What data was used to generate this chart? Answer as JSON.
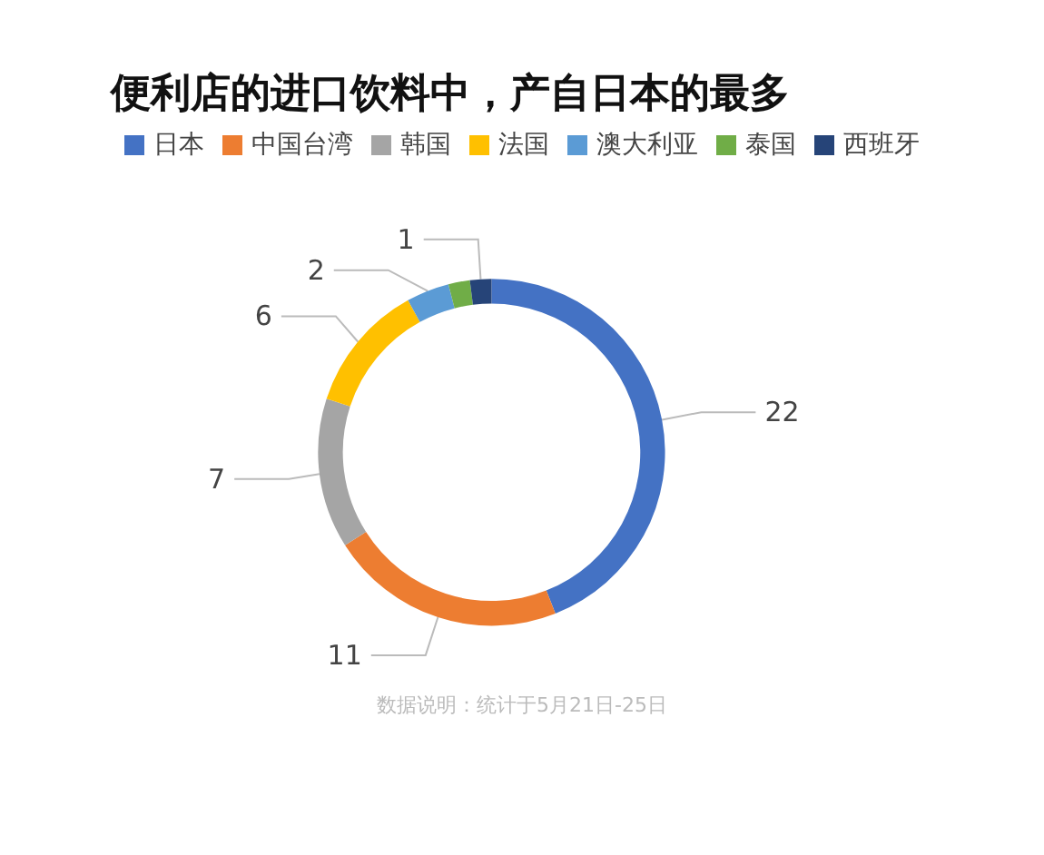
{
  "chart_data": {
    "type": "donut",
    "title": "便利店的进口饮料中，产自日本的最多",
    "categories": [
      "日本",
      "中国台湾",
      "韩国",
      "法国",
      "澳大利亚",
      "泰国",
      "西班牙"
    ],
    "values": [
      22,
      11,
      7,
      6,
      2,
      1,
      1
    ],
    "value_labels": [
      "22",
      "11",
      "7",
      "6",
      "2",
      null,
      "1"
    ],
    "colors": [
      "#4472c4",
      "#ed7d31",
      "#a5a5a5",
      "#ffc000",
      "#5b9bd5",
      "#70ad47",
      "#264478"
    ],
    "legend": "top",
    "annotations": [
      "数据说明：统计于5月21日-25日"
    ]
  }
}
